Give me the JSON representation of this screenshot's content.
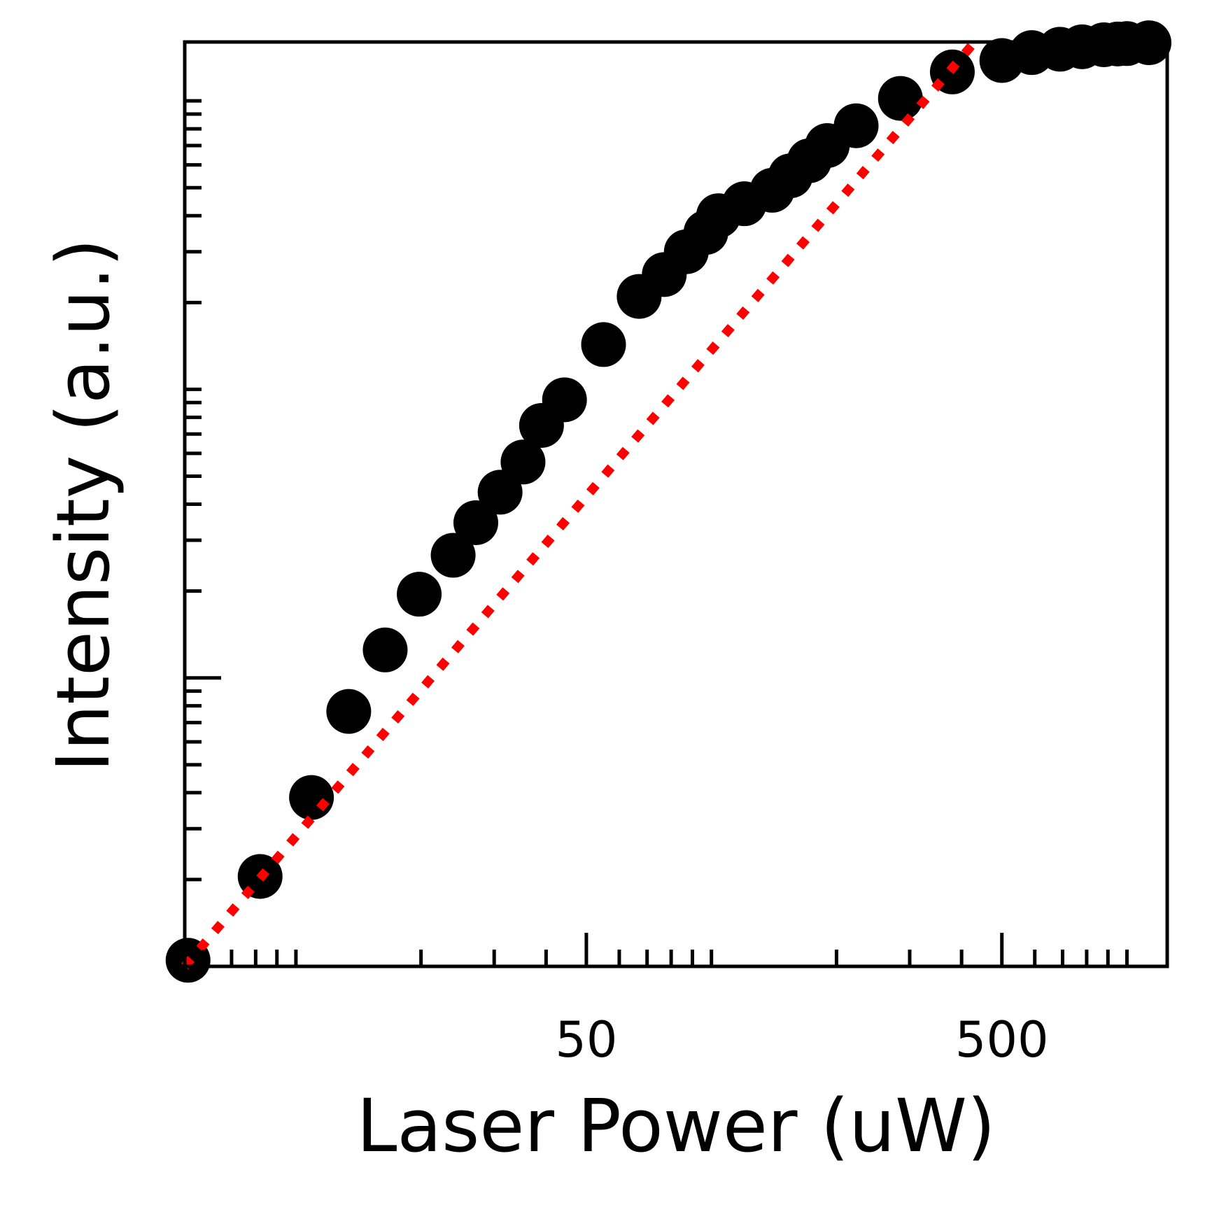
{
  "chart_data": {
    "type": "scatter",
    "title": "",
    "xlabel": "Laser Power (uW)",
    "ylabel": "Intensity (a.u.)",
    "xscale": "log",
    "yscale": "log",
    "xlim": [
      5.4,
      1250
    ],
    "ylim": [
      1,
      1600
    ],
    "x_tick_labels": [
      {
        "value": 50,
        "label": "50"
      },
      {
        "value": 500,
        "label": "500"
      }
    ],
    "grid": false,
    "legend": "none",
    "series": [
      {
        "kind": "points",
        "marker_color": "#000000",
        "x": [
          5.5,
          8.2,
          10.9,
          13.4,
          16.4,
          19.8,
          23.9,
          27.1,
          31.0,
          35.2,
          39.0,
          44.3,
          55.0,
          67.0,
          77.0,
          87.0,
          97.0,
          104,
          120,
          140,
          155,
          172,
          190,
          223,
          285,
          380,
          500,
          590,
          690,
          780,
          880,
          950,
          1000,
          1130
        ],
        "y": [
          1.05,
          2.05,
          3.85,
          7.65,
          12.5,
          19.5,
          26.6,
          34.5,
          44,
          56,
          75,
          92,
          143,
          210,
          250,
          300,
          350,
          400,
          440,
          490,
          550,
          620,
          700,
          820,
          1020,
          1260,
          1380,
          1470,
          1510,
          1540,
          1565,
          1575,
          1580,
          1590
        ]
      },
      {
        "kind": "fit-line",
        "line_color": "#ff0000",
        "line_style": "dotted",
        "x": [
          5.4,
          430
        ],
        "y": [
          1.0,
          1600
        ]
      }
    ]
  }
}
